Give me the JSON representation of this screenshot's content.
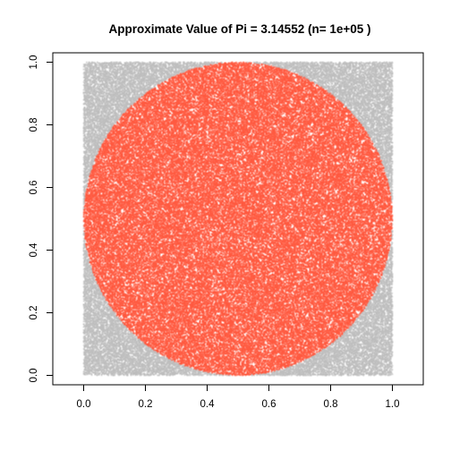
{
  "chart_data": {
    "type": "scatter",
    "title": "Approximate Value of Pi = 3.14552  (n= 1e+05 )",
    "xlabel": "",
    "ylabel": "",
    "xlim": [
      -0.1,
      1.1
    ],
    "ylim": [
      -0.03,
      1.03
    ],
    "x_ticks": [
      0.0,
      0.2,
      0.4,
      0.6,
      0.8,
      1.0
    ],
    "x_tick_labels": [
      "0.0",
      "0.2",
      "0.4",
      "0.6",
      "0.8",
      "1.0"
    ],
    "y_ticks": [
      0.0,
      0.2,
      0.4,
      0.6,
      0.8,
      1.0
    ],
    "y_tick_labels": [
      "0.0",
      "0.2",
      "0.4",
      "0.6",
      "0.8",
      "1.0"
    ],
    "grid": false,
    "n_points": 100000,
    "pi_estimate": 3.14552,
    "circle": {
      "center": [
        0.5,
        0.5
      ],
      "radius": 0.5
    },
    "series": [
      {
        "role": "inside-circle",
        "color": "#ff5a40"
      },
      {
        "role": "outside-circle",
        "color": "#bebebe"
      }
    ]
  }
}
